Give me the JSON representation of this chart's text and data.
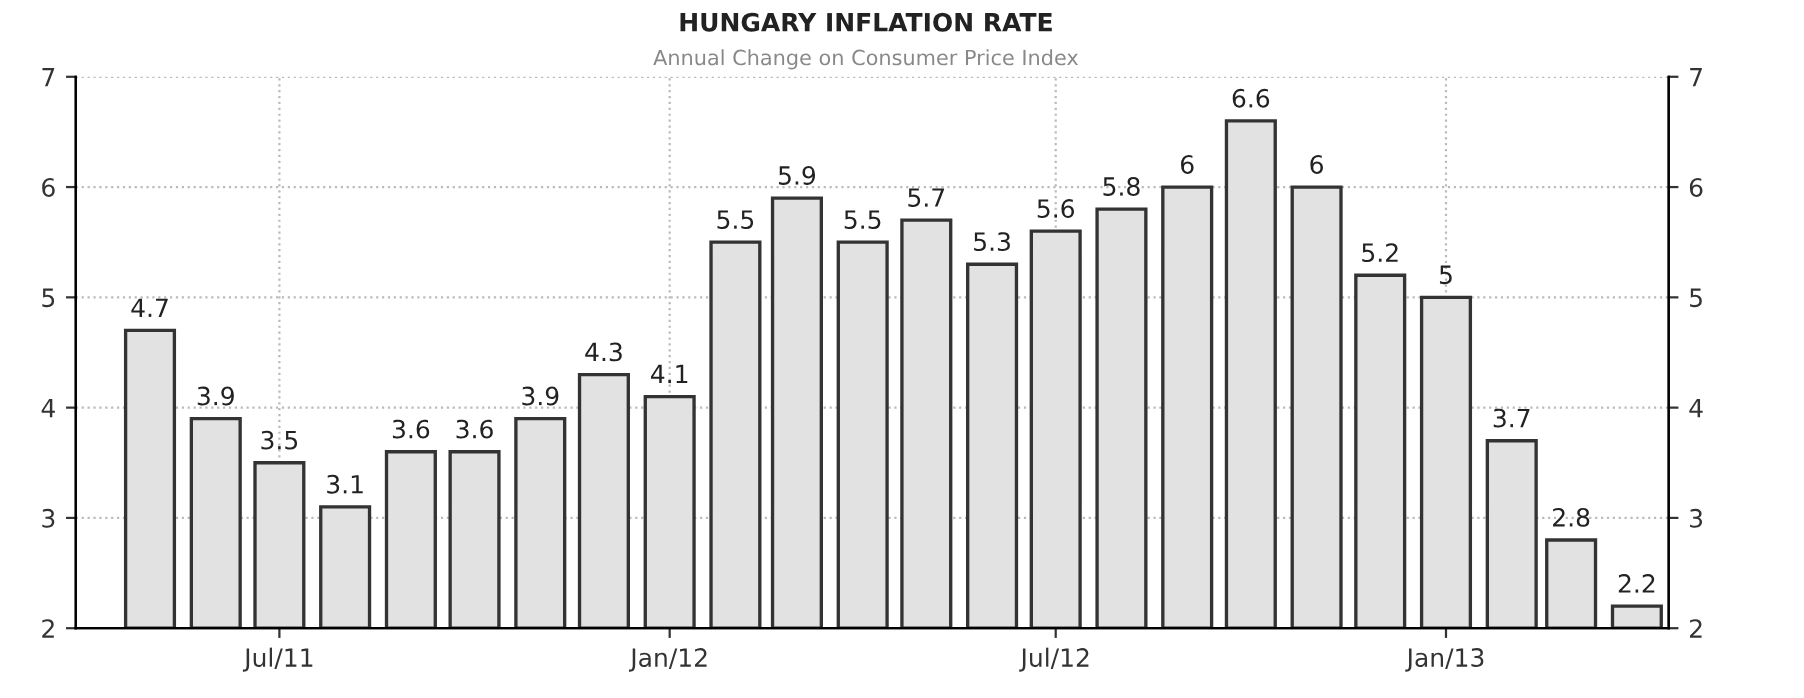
{
  "chart_data": {
    "type": "bar",
    "title": "HUNGARY INFLATION RATE",
    "subtitle": "Annual Change on Consumer Price Index",
    "x": [
      "2011-05",
      "2011-06",
      "2011-07",
      "2011-08",
      "2011-09",
      "2011-10",
      "2011-11",
      "2011-12",
      "2012-01",
      "2012-02",
      "2012-03",
      "2012-04",
      "2012-05",
      "2012-06",
      "2012-07",
      "2012-08",
      "2012-09",
      "2012-10",
      "2012-11",
      "2012-12",
      "2013-01",
      "2013-02",
      "2013-03",
      "2013-04"
    ],
    "values": [
      4.7,
      3.9,
      3.5,
      3.1,
      3.6,
      3.6,
      3.9,
      4.3,
      4.1,
      5.5,
      5.9,
      5.5,
      5.7,
      5.3,
      5.6,
      5.8,
      6,
      6.6,
      6,
      5.2,
      5,
      3.7,
      2.8,
      2.2
    ],
    "color": "#e2e2e2",
    "data_labels": true,
    "xlim": [
      "2011-03-27",
      "2013-04-16"
    ],
    "xticks": [
      {
        "value": "2011-07-01",
        "label": "Jul/11"
      },
      {
        "value": "2012-01-01",
        "label": "Jan/12"
      },
      {
        "value": "2012-07-01",
        "label": "Jul/12"
      },
      {
        "value": "2013-01-01",
        "label": "Jan/13"
      }
    ],
    "ylim": [
      2,
      7
    ],
    "yticks": [
      2,
      3,
      4,
      5,
      6,
      7
    ],
    "y2lim": [
      2,
      7
    ],
    "y2ticks": [
      2,
      3,
      4,
      5,
      6,
      7
    ],
    "grid": true
  }
}
